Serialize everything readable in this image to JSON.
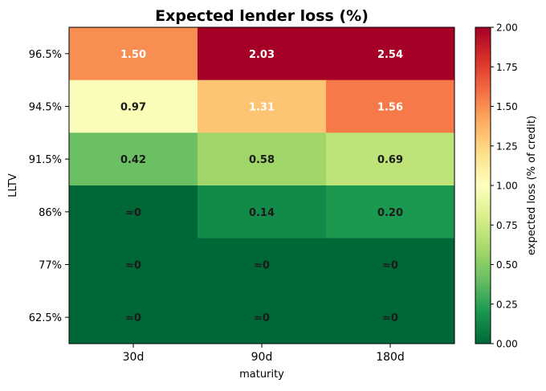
{
  "chart_data": {
    "type": "heatmap",
    "title": "Expected lender loss (%)",
    "xlabel": "maturity",
    "ylabel": "LLTV",
    "x_categories": [
      "30d",
      "90d",
      "180d"
    ],
    "y_categories": [
      "96.5%",
      "94.5%",
      "91.5%",
      "86%",
      "77%",
      "62.5%"
    ],
    "values": [
      [
        1.5,
        2.03,
        2.54
      ],
      [
        0.97,
        1.31,
        1.56
      ],
      [
        0.42,
        0.58,
        0.69
      ],
      [
        0.0,
        0.14,
        0.2
      ],
      [
        0.0,
        0.0,
        0.0
      ],
      [
        0.0,
        0.0,
        0.0
      ]
    ],
    "cell_labels": [
      [
        "1.50",
        "2.03",
        "2.54"
      ],
      [
        "0.97",
        "1.31",
        "1.56"
      ],
      [
        "0.42",
        "0.58",
        "0.69"
      ],
      [
        "≈0",
        "0.14",
        "0.20"
      ],
      [
        "≈0",
        "≈0",
        "≈0"
      ],
      [
        "≈0",
        "≈0",
        "≈0"
      ]
    ],
    "colormap": "RdYlGn_r",
    "vmin": 0,
    "vmax": 2.0,
    "colorbar": {
      "label": "expected loss (% of credit)",
      "ticks": [
        "0.00",
        "0.25",
        "0.50",
        "0.75",
        "1.00",
        "1.25",
        "1.50",
        "1.75",
        "2.00"
      ],
      "tick_values": [
        0,
        0.25,
        0.5,
        0.75,
        1.0,
        1.25,
        1.5,
        1.75,
        2.0
      ]
    },
    "label_colors": {
      "light": "#ffffff",
      "dark": "#1a1a1a"
    }
  }
}
